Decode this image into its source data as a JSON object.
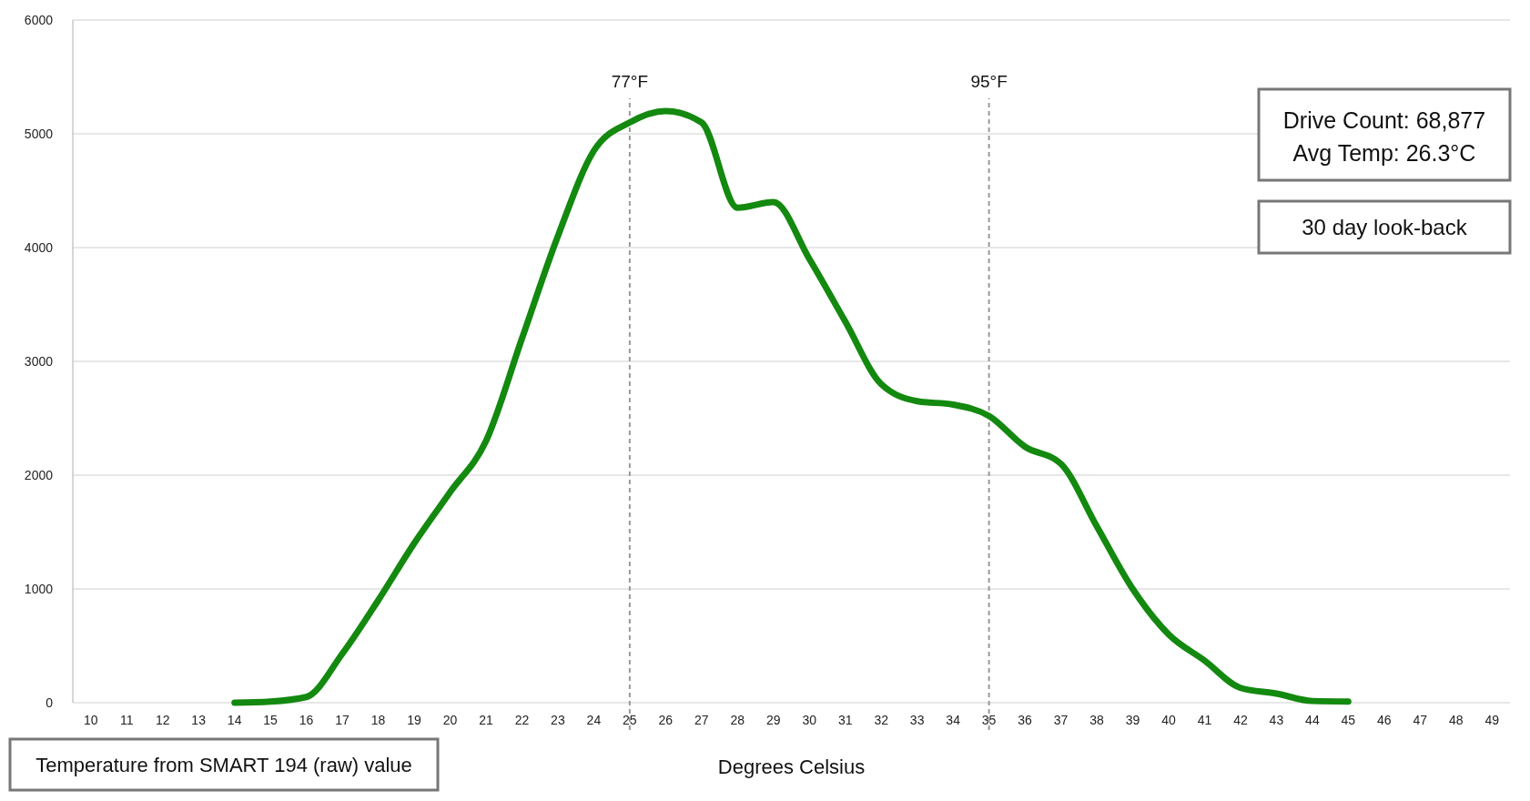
{
  "chart_data": {
    "type": "line",
    "xlabel": "Degrees Celsius",
    "x": [
      14,
      15,
      16,
      17,
      18,
      19,
      20,
      21,
      22,
      23,
      24,
      25,
      26,
      27,
      28,
      29,
      30,
      31,
      32,
      33,
      34,
      35,
      36,
      37,
      38,
      39,
      40,
      41,
      42,
      43,
      44,
      45
    ],
    "series": [
      {
        "color": "#13890f",
        "values": [
          0,
          10,
          50,
          430,
          900,
          1400,
          1850,
          2300,
          3200,
          4100,
          4850,
          5100,
          5200,
          5100,
          4350,
          4400,
          3900,
          3350,
          2800,
          2650,
          2620,
          2520,
          2250,
          2100,
          1550,
          1000,
          600,
          370,
          130,
          80,
          15,
          10
        ]
      }
    ],
    "xlim": [
      9.5,
      49.5
    ],
    "xticks": [
      10,
      11,
      12,
      13,
      14,
      15,
      16,
      17,
      18,
      19,
      20,
      21,
      22,
      23,
      24,
      25,
      26,
      27,
      28,
      29,
      30,
      31,
      32,
      33,
      34,
      35,
      36,
      37,
      38,
      39,
      40,
      41,
      42,
      43,
      44,
      45,
      46,
      47,
      48,
      49
    ],
    "ylim": [
      0,
      6000
    ],
    "yticks": [
      0,
      1000,
      2000,
      3000,
      4000,
      5000,
      6000
    ],
    "grid": "y",
    "marker": "none",
    "line_style": "solid",
    "ref_lines": [
      {
        "axis": "x",
        "value": 25,
        "label": "77°F",
        "color": "#999999",
        "line_style": "dashed"
      },
      {
        "axis": "x",
        "value": 35,
        "label": "95°F",
        "color": "#999999",
        "line_style": "dashed"
      }
    ],
    "annotations": [
      "Drive Count: 68,877",
      "Avg Temp:  26.3°C",
      "30 day look-back",
      "Temperature from SMART 194 (raw) value"
    ]
  }
}
